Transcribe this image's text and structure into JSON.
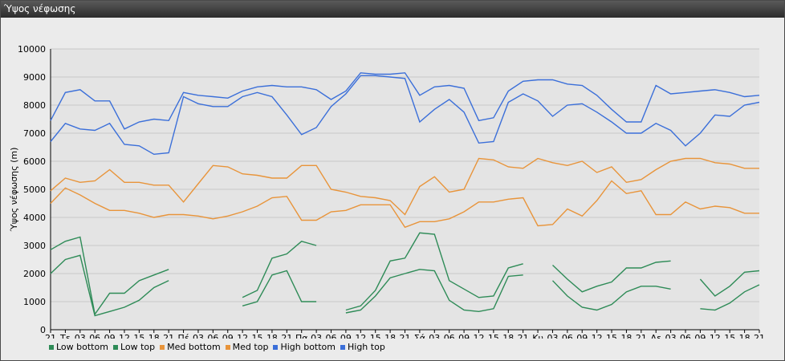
{
  "window": {
    "title": "Ύψος νέφωσης"
  },
  "chart_data": {
    "type": "line",
    "title": "",
    "ylabel": "Ύψος νέφωσης (m)",
    "ylim": [
      0,
      10000
    ],
    "yticks": [
      0,
      1000,
      2000,
      3000,
      4000,
      5000,
      6000,
      7000,
      8000,
      9000,
      10000
    ],
    "grid": "horizontal",
    "legend_position": "bottom-left",
    "categories": [
      "21",
      "Τε",
      "03",
      "06",
      "09",
      "12",
      "15",
      "18",
      "21",
      "Πέ",
      "03",
      "06",
      "09",
      "12",
      "15",
      "18",
      "21",
      "Πα",
      "03",
      "06",
      "09",
      "12",
      "15",
      "18",
      "21",
      "Σά",
      "03",
      "06",
      "09",
      "12",
      "15",
      "18",
      "21",
      "Κυ",
      "03",
      "06",
      "09",
      "12",
      "15",
      "18",
      "21",
      "Δε",
      "03",
      "06",
      "09",
      "12",
      "15",
      "18",
      "21"
    ],
    "series": [
      {
        "name": "Low bottom",
        "color": "#2e8b57",
        "values": [
          2000,
          2500,
          2650,
          500,
          650,
          800,
          1050,
          1500,
          1750,
          null,
          null,
          null,
          null,
          850,
          1000,
          1950,
          2100,
          1000,
          1000,
          null,
          600,
          700,
          1200,
          1850,
          2000,
          2150,
          2100,
          1050,
          700,
          650,
          750,
          1900,
          1950,
          null,
          1750,
          1200,
          800,
          700,
          900,
          1350,
          1550,
          1550,
          1450,
          null,
          750,
          700,
          950,
          1350,
          1600
        ]
      },
      {
        "name": "Low top",
        "color": "#2e8b57",
        "values": [
          2850,
          3150,
          3300,
          550,
          1300,
          1300,
          1750,
          1950,
          2150,
          null,
          null,
          null,
          null,
          1150,
          1400,
          2550,
          2700,
          3150,
          3000,
          null,
          700,
          850,
          1400,
          2450,
          2550,
          3450,
          3400,
          1750,
          1450,
          1150,
          1200,
          2200,
          2350,
          null,
          2300,
          1800,
          1350,
          1550,
          1700,
          2200,
          2200,
          2400,
          2450,
          null,
          1800,
          1200,
          1550,
          2050,
          2100
        ]
      },
      {
        "name": "Med bottom",
        "color": "#e8943a",
        "values": [
          4500,
          5050,
          4800,
          4500,
          4250,
          4250,
          4150,
          4000,
          4100,
          4100,
          4050,
          3950,
          4050,
          4200,
          4400,
          4700,
          4750,
          3900,
          3900,
          4200,
          4250,
          4450,
          4450,
          4450,
          3650,
          3850,
          3850,
          3950,
          4200,
          4550,
          4550,
          4650,
          4700,
          3700,
          3750,
          4300,
          4050,
          4600,
          5300,
          4850,
          4950,
          4100,
          4100,
          4550,
          4300,
          4400,
          4350,
          4150,
          4150
        ]
      },
      {
        "name": "Med top",
        "color": "#e8943a",
        "values": [
          4950,
          5400,
          5250,
          5300,
          5700,
          5250,
          5250,
          5150,
          5150,
          4550,
          5200,
          5850,
          5800,
          5550,
          5500,
          5400,
          5400,
          5850,
          5850,
          5000,
          4900,
          4750,
          4700,
          4600,
          4100,
          5100,
          5450,
          4900,
          5000,
          6100,
          6050,
          5800,
          5750,
          6100,
          5950,
          5850,
          6000,
          5600,
          5800,
          5250,
          5350,
          5700,
          6000,
          6100,
          6100,
          5950,
          5900,
          5750,
          5750
        ]
      },
      {
        "name": "High bottom",
        "color": "#3b6fd9",
        "values": [
          6700,
          7350,
          7150,
          7100,
          7350,
          6600,
          6550,
          6250,
          6300,
          8300,
          8050,
          7950,
          7950,
          8300,
          8450,
          8300,
          7650,
          6950,
          7200,
          7950,
          8400,
          9050,
          9050,
          9000,
          8950,
          7400,
          7850,
          8200,
          7750,
          6650,
          6700,
          8100,
          8400,
          8150,
          7600,
          8000,
          8050,
          7750,
          7400,
          7000,
          7000,
          7350,
          7100,
          6550,
          7000,
          7650,
          7600,
          8000,
          8100
        ]
      },
      {
        "name": "High top",
        "color": "#3b6fd9",
        "values": [
          7450,
          8450,
          8550,
          8150,
          8150,
          7150,
          7400,
          7500,
          7450,
          8450,
          8350,
          8300,
          8250,
          8500,
          8650,
          8700,
          8650,
          8650,
          8550,
          8200,
          8500,
          9150,
          9100,
          9100,
          9150,
          8350,
          8650,
          8700,
          8600,
          7450,
          7550,
          8500,
          8850,
          8900,
          8900,
          8750,
          8700,
          8350,
          7850,
          7400,
          7400,
          8700,
          8400,
          8450,
          8500,
          8550,
          8450,
          8300,
          8350
        ]
      }
    ]
  }
}
